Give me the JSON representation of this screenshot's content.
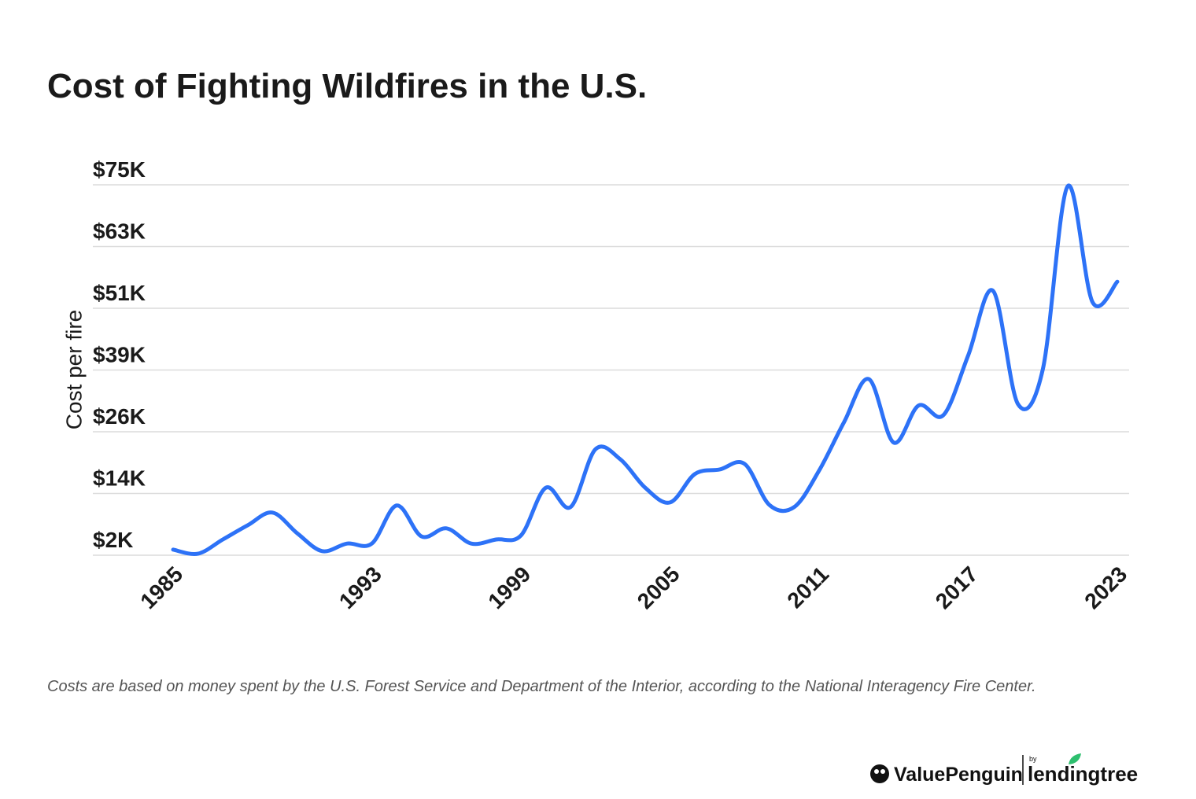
{
  "chart_data": {
    "type": "line",
    "title": "Cost of Fighting Wildfires in the U.S.",
    "y_label": "Cost per fire",
    "x": [
      1985,
      1986,
      1987,
      1988,
      1989,
      1990,
      1991,
      1992,
      1993,
      1994,
      1995,
      1996,
      1997,
      1998,
      1999,
      2000,
      2001,
      2002,
      2003,
      2004,
      2005,
      2006,
      2007,
      2008,
      2009,
      2010,
      2011,
      2012,
      2013,
      2014,
      2015,
      2016,
      2017,
      2018,
      2019,
      2020,
      2021,
      2022,
      2023
    ],
    "series": [
      {
        "name": "Cost per fire",
        "color": "#2d72f7",
        "values": [
          3100,
          2300,
          5100,
          7900,
          10400,
          6300,
          2800,
          4300,
          4300,
          11800,
          5700,
          7300,
          4300,
          5100,
          5900,
          15300,
          11500,
          22900,
          20900,
          15300,
          12400,
          18000,
          18900,
          20000,
          11900,
          11500,
          18700,
          28200,
          36700,
          24200,
          31500,
          29600,
          41400,
          54100,
          31800,
          38600,
          74700,
          51900,
          55900
        ]
      }
    ],
    "xlim": [
      1985,
      2023
    ],
    "xticks": [
      1985,
      1993,
      1999,
      2005,
      2011,
      2017,
      2023
    ],
    "ylim": [
      2000,
      75000
    ],
    "yticks": [
      {
        "value": 2000,
        "label": "$2K"
      },
      {
        "value": 14167,
        "label": "$14K"
      },
      {
        "value": 26333,
        "label": "$26K"
      },
      {
        "value": 38500,
        "label": "$39K"
      },
      {
        "value": 50667,
        "label": "$51K"
      },
      {
        "value": 62833,
        "label": "$63K"
      },
      {
        "value": 75000,
        "label": "$75K"
      }
    ],
    "grid": true,
    "caption": "Costs are based on money spent by the U.S. Forest Service and Department of the Interior, according to the National Interagency Fire Center."
  },
  "branding": {
    "brand": "ValuePenguin",
    "by": "by",
    "partner": "lendingtree"
  }
}
